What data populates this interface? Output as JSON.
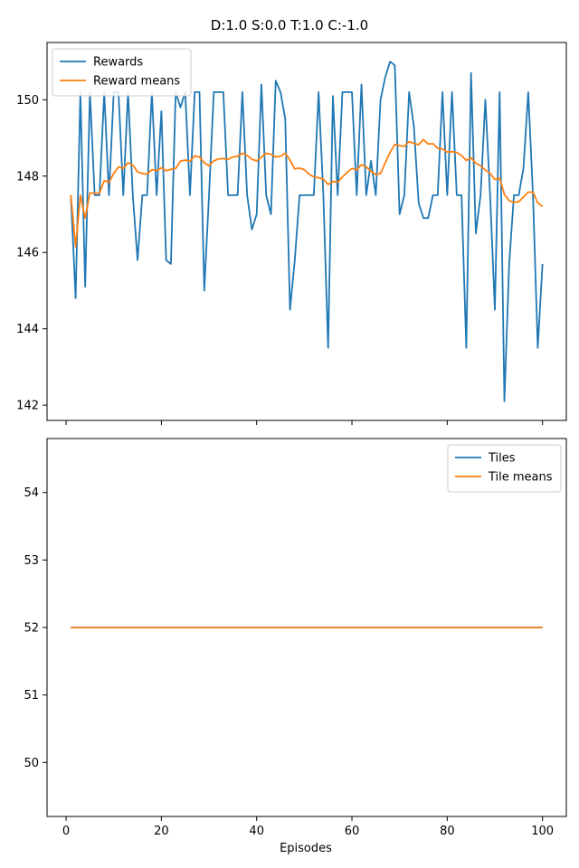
{
  "figure": {
    "title": "D:1.0 S:0.0 T:1.0 C:-1.0",
    "xlabel": "Episodes"
  },
  "chart_data": [
    {
      "type": "line",
      "title": "",
      "xlabel": "",
      "ylabel": "",
      "xlim": [
        -4,
        105
      ],
      "ylim": [
        141.6,
        151.5
      ],
      "xticks": [
        0,
        20,
        40,
        60,
        80,
        100
      ],
      "xtick_labels_shown": false,
      "yticks": [
        142,
        144,
        146,
        148,
        150
      ],
      "ytick_labels": [
        "142",
        "144",
        "146",
        "148",
        "150"
      ],
      "grid": false,
      "legend": {
        "position": "top-left",
        "entries": [
          "Rewards",
          "Reward means"
        ]
      },
      "series": [
        {
          "name": "Rewards",
          "color": "#1f77b4",
          "x": [
            1,
            2,
            3,
            4,
            5,
            6,
            7,
            8,
            9,
            10,
            11,
            12,
            13,
            14,
            15,
            16,
            17,
            18,
            19,
            20,
            21,
            22,
            23,
            24,
            25,
            26,
            27,
            28,
            29,
            30,
            31,
            32,
            33,
            34,
            35,
            36,
            37,
            38,
            39,
            40,
            41,
            42,
            43,
            44,
            45,
            46,
            47,
            48,
            49,
            50,
            51,
            52,
            53,
            54,
            55,
            56,
            57,
            58,
            59,
            60,
            61,
            62,
            63,
            64,
            65,
            66,
            67,
            68,
            69,
            70,
            71,
            72,
            73,
            74,
            75,
            76,
            77,
            78,
            79,
            80,
            81,
            82,
            83,
            84,
            85,
            86,
            87,
            88,
            89,
            90,
            91,
            92,
            93,
            94,
            95,
            96,
            97,
            98,
            99,
            100
          ],
          "values": [
            147.5,
            144.8,
            150.2,
            145.1,
            150.2,
            147.5,
            147.5,
            150.2,
            147.5,
            150.2,
            150.2,
            147.5,
            150.2,
            147.5,
            145.8,
            147.5,
            147.5,
            150.2,
            147.5,
            149.7,
            145.8,
            145.7,
            150.2,
            149.8,
            150.2,
            147.5,
            150.2,
            150.2,
            145.0,
            147.5,
            150.2,
            150.2,
            150.2,
            147.5,
            147.5,
            147.5,
            150.2,
            147.5,
            146.6,
            147.0,
            150.4,
            147.5,
            147.0,
            150.5,
            150.2,
            149.5,
            144.5,
            145.8,
            147.5,
            147.5,
            147.5,
            147.5,
            150.2,
            147.5,
            143.5,
            150.1,
            147.5,
            150.2,
            150.2,
            150.2,
            147.5,
            150.4,
            147.5,
            148.4,
            147.5,
            150.0,
            150.6,
            151.0,
            150.9,
            147.0,
            147.5,
            150.2,
            149.3,
            147.3,
            146.9,
            146.9,
            147.5,
            147.5,
            150.2,
            147.5,
            150.2,
            147.5,
            147.5,
            143.5,
            150.7,
            146.5,
            147.5,
            150.0,
            147.5,
            144.5,
            150.2,
            142.1,
            145.7,
            147.5,
            147.5,
            148.2,
            150.2,
            147.5,
            143.5,
            145.7
          ]
        },
        {
          "name": "Reward means",
          "color": "#ff7f0e",
          "x": [
            1,
            2,
            3,
            4,
            5,
            6,
            7,
            8,
            9,
            10,
            11,
            12,
            13,
            14,
            15,
            16,
            17,
            18,
            19,
            20,
            21,
            22,
            23,
            24,
            25,
            26,
            27,
            28,
            29,
            30,
            31,
            32,
            33,
            34,
            35,
            36,
            37,
            38,
            39,
            40,
            41,
            42,
            43,
            44,
            45,
            46,
            47,
            48,
            49,
            50,
            51,
            52,
            53,
            54,
            55,
            56,
            57,
            58,
            59,
            60,
            61,
            62,
            63,
            64,
            65,
            66,
            67,
            68,
            69,
            70,
            71,
            72,
            73,
            74,
            75,
            76,
            77,
            78,
            79,
            80,
            81,
            82,
            83,
            84,
            85,
            86,
            87,
            88,
            89,
            90,
            91,
            92,
            93,
            94,
            95,
            96,
            97,
            98,
            99,
            100
          ],
          "values": [
            147.5,
            146.15,
            147.5,
            146.9,
            147.56,
            147.55,
            147.55,
            147.88,
            147.84,
            148.07,
            148.24,
            148.2,
            148.35,
            148.29,
            148.11,
            148.07,
            148.05,
            148.17,
            148.14,
            148.22,
            148.14,
            148.18,
            148.2,
            148.39,
            148.42,
            148.39,
            148.53,
            148.5,
            148.35,
            148.27,
            148.4,
            148.45,
            148.46,
            148.44,
            148.5,
            148.52,
            148.6,
            148.54,
            148.44,
            148.4,
            148.5,
            148.6,
            148.57,
            148.5,
            148.52,
            148.6,
            148.42,
            148.19,
            148.21,
            148.17,
            148.05,
            147.98,
            147.96,
            147.92,
            147.78,
            147.86,
            147.84,
            147.98,
            148.1,
            148.2,
            148.16,
            148.3,
            148.24,
            148.13,
            148.04,
            148.07,
            148.35,
            148.62,
            148.83,
            148.8,
            148.78,
            148.9,
            148.86,
            148.82,
            148.96,
            148.84,
            148.85,
            148.73,
            148.71,
            148.63,
            148.64,
            148.62,
            148.54,
            148.41,
            148.48,
            148.34,
            148.27,
            148.16,
            148.07,
            147.91,
            147.95,
            147.52,
            147.36,
            147.31,
            147.33,
            147.45,
            147.58,
            147.58,
            147.3,
            147.2
          ]
        }
      ]
    },
    {
      "type": "line",
      "title": "",
      "xlabel": "Episodes",
      "ylabel": "",
      "xlim": [
        -4,
        105
      ],
      "ylim": [
        49.2,
        54.8
      ],
      "xticks": [
        0,
        20,
        40,
        60,
        80,
        100
      ],
      "xtick_labels": [
        "0",
        "20",
        "40",
        "60",
        "80",
        "100"
      ],
      "yticks": [
        50,
        51,
        52,
        53,
        54
      ],
      "ytick_labels": [
        "50",
        "51",
        "52",
        "53",
        "54"
      ],
      "grid": false,
      "legend": {
        "position": "top-right",
        "entries": [
          "Tiles",
          "Tile means"
        ]
      },
      "series": [
        {
          "name": "Tiles",
          "color": "#1f77b4",
          "x": [
            1,
            100
          ],
          "values": [
            52,
            52
          ]
        },
        {
          "name": "Tile means",
          "color": "#ff7f0e",
          "x": [
            1,
            100
          ],
          "values": [
            52,
            52
          ]
        }
      ]
    }
  ]
}
